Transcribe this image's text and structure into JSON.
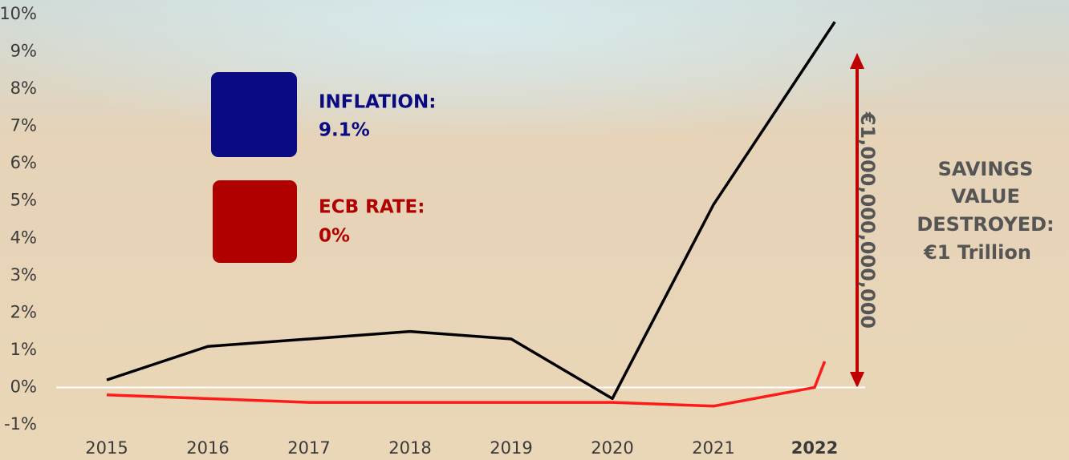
{
  "chart_data": {
    "type": "line",
    "xlim": [
      2014.5,
      2022.5
    ],
    "xticks": [
      2015,
      2016,
      2017,
      2018,
      2019,
      2020,
      2021,
      2022
    ],
    "ylim": [
      -1,
      10
    ],
    "yticks": [
      {
        "value": -1,
        "label": "-1%"
      },
      {
        "value": 0,
        "label": "0%"
      },
      {
        "value": 1,
        "label": "1%"
      },
      {
        "value": 2,
        "label": "2%"
      },
      {
        "value": 3,
        "label": "3%"
      },
      {
        "value": 4,
        "label": "4%"
      },
      {
        "value": 5,
        "label": "5%"
      },
      {
        "value": 6,
        "label": "6%"
      },
      {
        "value": 7,
        "label": "7%"
      },
      {
        "value": 8,
        "label": "8%"
      },
      {
        "value": 9,
        "label": "9%"
      },
      {
        "value": 10,
        "label": "10%"
      }
    ],
    "series": [
      {
        "color": "#000000",
        "x": [
          2015,
          2016,
          2017,
          2018,
          2019,
          2020,
          2021,
          2022.2
        ],
        "values": [
          0.2,
          1.1,
          1.3,
          1.5,
          1.3,
          -0.3,
          4.9,
          9.8
        ]
      },
      {
        "color": "#ff1a1a",
        "x": [
          2015,
          2016,
          2017,
          2018,
          2019,
          2020,
          2021,
          2022,
          2022.1
        ],
        "values": [
          -0.2,
          -0.3,
          -0.4,
          -0.4,
          -0.4,
          -0.4,
          -0.5,
          0,
          0.7
        ]
      }
    ],
    "callouts": [
      {
        "label": "INFLATION:",
        "value_text": "9.1%"
      },
      {
        "label": "ECB RATE:",
        "value_text": "0%"
      }
    ],
    "annotations": [
      "€1,000,000,000,000",
      "SAVINGS",
      "VALUE",
      "DESTROYED:",
      "€1 Trillion"
    ]
  }
}
